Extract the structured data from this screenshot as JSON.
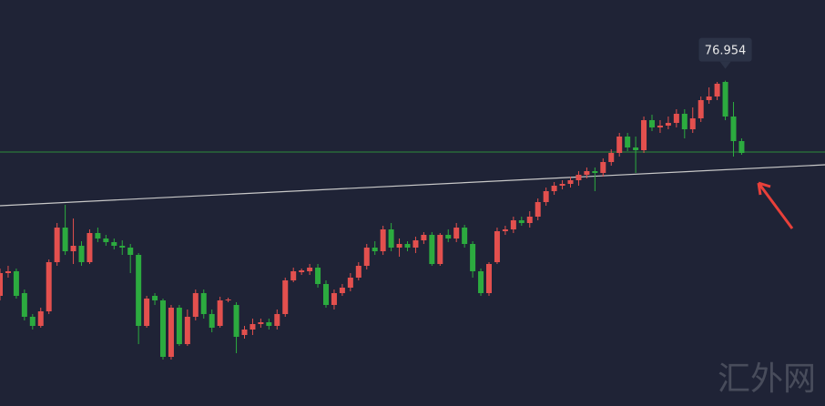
{
  "chart_data": {
    "type": "candlestick",
    "ylim": [
      73.38,
      77.84
    ],
    "up_color": "#e3504e",
    "down_color": "#2cab3f",
    "background": "#1f2336",
    "open": [
      74.59,
      74.84,
      74.86,
      74.62,
      74.36,
      74.26,
      74.42,
      74.96,
      75.34,
      75.08,
      75.14,
      74.96,
      75.28,
      75.22,
      75.18,
      75.14,
      75.12,
      75.04,
      74.26,
      74.59,
      74.54,
      73.92,
      74.46,
      74.06,
      74.36,
      74.62,
      74.39,
      74.26,
      74.54,
      74.49,
      74.16,
      74.22,
      74.28,
      74.3,
      74.26,
      74.39,
      74.76,
      74.85,
      74.86,
      74.9,
      74.72,
      74.49,
      74.62,
      74.68,
      74.79,
      74.92,
      75.12,
      75.08,
      75.32,
      75.12,
      75.16,
      75.12,
      75.2,
      75.26,
      74.94,
      75.26,
      75.22,
      75.34,
      75.16,
      74.86,
      74.62,
      74.96,
      75.3,
      75.32,
      75.42,
      75.39,
      75.46,
      75.62,
      75.74,
      75.8,
      75.82,
      75.86,
      75.92,
      75.96,
      75.94,
      76.06,
      76.16,
      76.34,
      76.22,
      76.19,
      76.52,
      76.44,
      76.46,
      76.49,
      76.59,
      76.42,
      76.54,
      76.74,
      76.78,
      76.94,
      76.56,
      76.29
    ],
    "high": [
      74.89,
      74.92,
      74.89,
      74.66,
      74.39,
      74.46,
      74.99,
      75.39,
      75.59,
      75.44,
      75.19,
      75.32,
      75.34,
      75.26,
      75.22,
      75.2,
      75.16,
      75.06,
      74.59,
      74.62,
      74.56,
      74.49,
      74.49,
      74.44,
      74.66,
      74.66,
      74.44,
      74.58,
      74.57,
      74.52,
      74.26,
      74.34,
      74.34,
      74.34,
      74.44,
      74.79,
      74.9,
      74.89,
      74.94,
      74.94,
      74.76,
      74.66,
      74.72,
      74.84,
      74.96,
      75.16,
      75.19,
      75.36,
      75.39,
      75.22,
      75.19,
      75.24,
      75.29,
      75.29,
      75.28,
      75.32,
      75.39,
      75.37,
      75.19,
      74.89,
      74.96,
      75.34,
      75.36,
      75.46,
      75.46,
      75.52,
      75.66,
      75.78,
      75.84,
      75.86,
      75.9,
      75.96,
      76.0,
      76.0,
      76.1,
      76.2,
      76.38,
      76.38,
      76.34,
      76.56,
      76.58,
      76.52,
      76.56,
      76.64,
      76.64,
      76.66,
      76.78,
      76.88,
      76.94,
      76.954,
      76.72,
      76.32
    ],
    "low": [
      74.54,
      74.79,
      74.56,
      74.32,
      74.22,
      74.24,
      74.39,
      74.92,
      75.04,
      74.94,
      74.92,
      74.94,
      75.18,
      75.14,
      75.1,
      75.04,
      74.84,
      74.06,
      74.24,
      74.49,
      73.89,
      73.89,
      74.04,
      74.04,
      74.32,
      74.34,
      74.19,
      74.24,
      74.52,
      73.96,
      74.12,
      74.16,
      74.24,
      74.22,
      74.22,
      74.36,
      74.74,
      74.82,
      74.82,
      74.68,
      74.46,
      74.44,
      74.59,
      74.64,
      74.76,
      74.88,
      75.04,
      75.04,
      75.08,
      75.02,
      75.08,
      75.06,
      75.16,
      74.92,
      74.92,
      75.18,
      75.18,
      75.12,
      74.79,
      74.59,
      74.59,
      74.94,
      75.26,
      75.28,
      75.36,
      75.34,
      75.42,
      75.58,
      75.7,
      75.76,
      75.78,
      75.8,
      75.88,
      75.74,
      75.9,
      76.02,
      76.12,
      76.18,
      75.94,
      76.16,
      76.4,
      76.38,
      76.42,
      76.44,
      76.32,
      76.38,
      76.5,
      76.7,
      76.74,
      76.52,
      76.12,
      76.14
    ],
    "close": [
      74.84,
      74.86,
      74.59,
      74.36,
      74.26,
      74.42,
      74.96,
      75.34,
      75.08,
      75.14,
      74.96,
      75.28,
      75.22,
      75.18,
      75.14,
      75.12,
      75.04,
      74.26,
      74.56,
      74.54,
      73.92,
      74.46,
      74.06,
      74.36,
      74.62,
      74.39,
      74.24,
      74.54,
      74.55,
      74.14,
      74.22,
      74.28,
      74.3,
      74.26,
      74.39,
      74.76,
      74.86,
      74.87,
      74.9,
      74.72,
      74.49,
      74.62,
      74.68,
      74.79,
      74.92,
      75.12,
      75.08,
      75.32,
      75.12,
      75.16,
      75.12,
      75.2,
      75.26,
      74.94,
      75.26,
      75.22,
      75.34,
      75.16,
      74.86,
      74.62,
      74.94,
      75.3,
      75.32,
      75.42,
      75.39,
      75.46,
      75.62,
      75.74,
      75.8,
      75.82,
      75.86,
      75.92,
      75.96,
      75.94,
      76.06,
      76.16,
      76.34,
      76.22,
      76.19,
      76.52,
      76.44,
      76.46,
      76.49,
      76.59,
      76.42,
      76.54,
      76.74,
      76.78,
      76.92,
      76.56,
      76.29,
      76.16
    ],
    "hline": {
      "value": 76.17,
      "color": "#2e8b3a"
    },
    "trendline": {
      "values": [
        75.58,
        76.03
      ],
      "color": "#c8c8c8"
    },
    "tooltip": "76.954",
    "watermark": "汇外网"
  }
}
